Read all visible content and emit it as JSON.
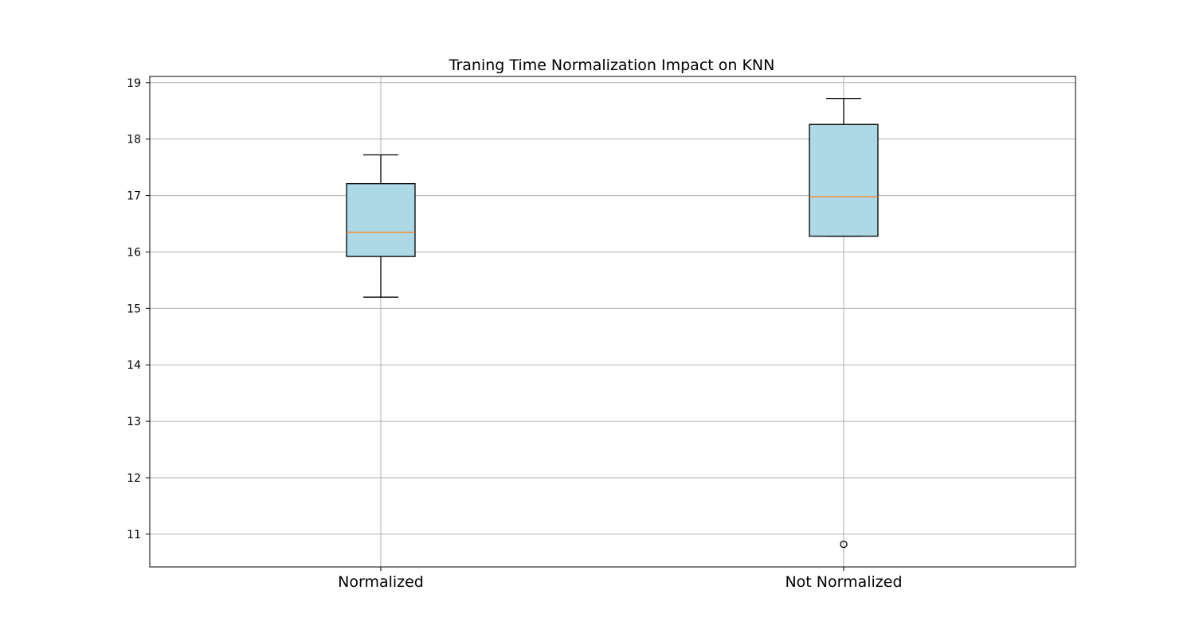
{
  "chart_data": {
    "type": "boxplot",
    "title": "Traning Time Normalization Impact on KNN",
    "xlabel": "",
    "ylabel": "",
    "categories": [
      "Normalized",
      "Not Normalized"
    ],
    "boxes": [
      {
        "category": "Normalized",
        "whisker_low": 15.2,
        "q1": 15.92,
        "median": 16.35,
        "q3": 17.21,
        "whisker_high": 17.72,
        "outliers": []
      },
      {
        "category": "Not Normalized",
        "whisker_low": 16.28,
        "q1": 16.28,
        "median": 16.98,
        "q3": 18.26,
        "whisker_high": 18.72,
        "outliers": [
          10.82
        ]
      }
    ],
    "ylim": [
      10.42,
      19.11
    ],
    "yticks": [
      11,
      12,
      13,
      14,
      15,
      16,
      17,
      18,
      19
    ],
    "grid": true,
    "legend": false,
    "colors": {
      "box_fill": "#add8e6",
      "median": "#ff7f0e",
      "grid": "#b0b0b0",
      "edge": "#000000"
    }
  }
}
